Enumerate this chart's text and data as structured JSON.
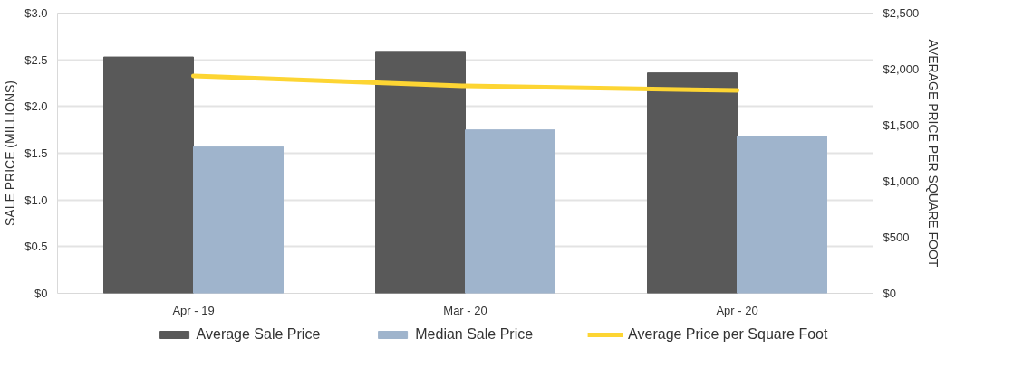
{
  "chart_data": {
    "type": "bar",
    "categories": [
      "Apr - 19",
      "Mar - 20",
      "Apr - 20"
    ],
    "ylabel": "SALE PRICE (MILLIONS)",
    "y2label": "AVERAGE PRICE PER SQUARE FOOT",
    "ylim": [
      0,
      3
    ],
    "yticks": [
      {
        "value": 0,
        "label": "$0"
      },
      {
        "value": 0.5,
        "label": "$0.5"
      },
      {
        "value": 1,
        "label": "$1.0"
      },
      {
        "value": 1.5,
        "label": "$1.5"
      },
      {
        "value": 2,
        "label": "$2.0"
      },
      {
        "value": 2.5,
        "label": "$2.5"
      },
      {
        "value": 3,
        "label": "$3.0"
      }
    ],
    "y2lim": [
      0,
      2500
    ],
    "y2ticks": [
      {
        "value": 0,
        "label": "$0"
      },
      {
        "value": 500,
        "label": "$500"
      },
      {
        "value": 1000,
        "label": "$1,000"
      },
      {
        "value": 1500,
        "label": "$1,500"
      },
      {
        "value": 2000,
        "label": "$2,000"
      },
      {
        "value": 2500,
        "label": "$2,500"
      }
    ],
    "series": [
      {
        "name": "Average Sale Price",
        "color": "#595959",
        "values": [
          2.53,
          2.59,
          2.36
        ]
      },
      {
        "name": "Median Sale Price",
        "color": "#9fb4cc",
        "values": [
          1.57,
          1.75,
          1.68
        ]
      },
      {
        "name": "Average Price per Square Foot",
        "type": "line",
        "axis": "y2",
        "color": "#fdd533",
        "values": [
          1940,
          1850,
          1810
        ]
      }
    ],
    "grid": "y",
    "legend": "bottom"
  }
}
